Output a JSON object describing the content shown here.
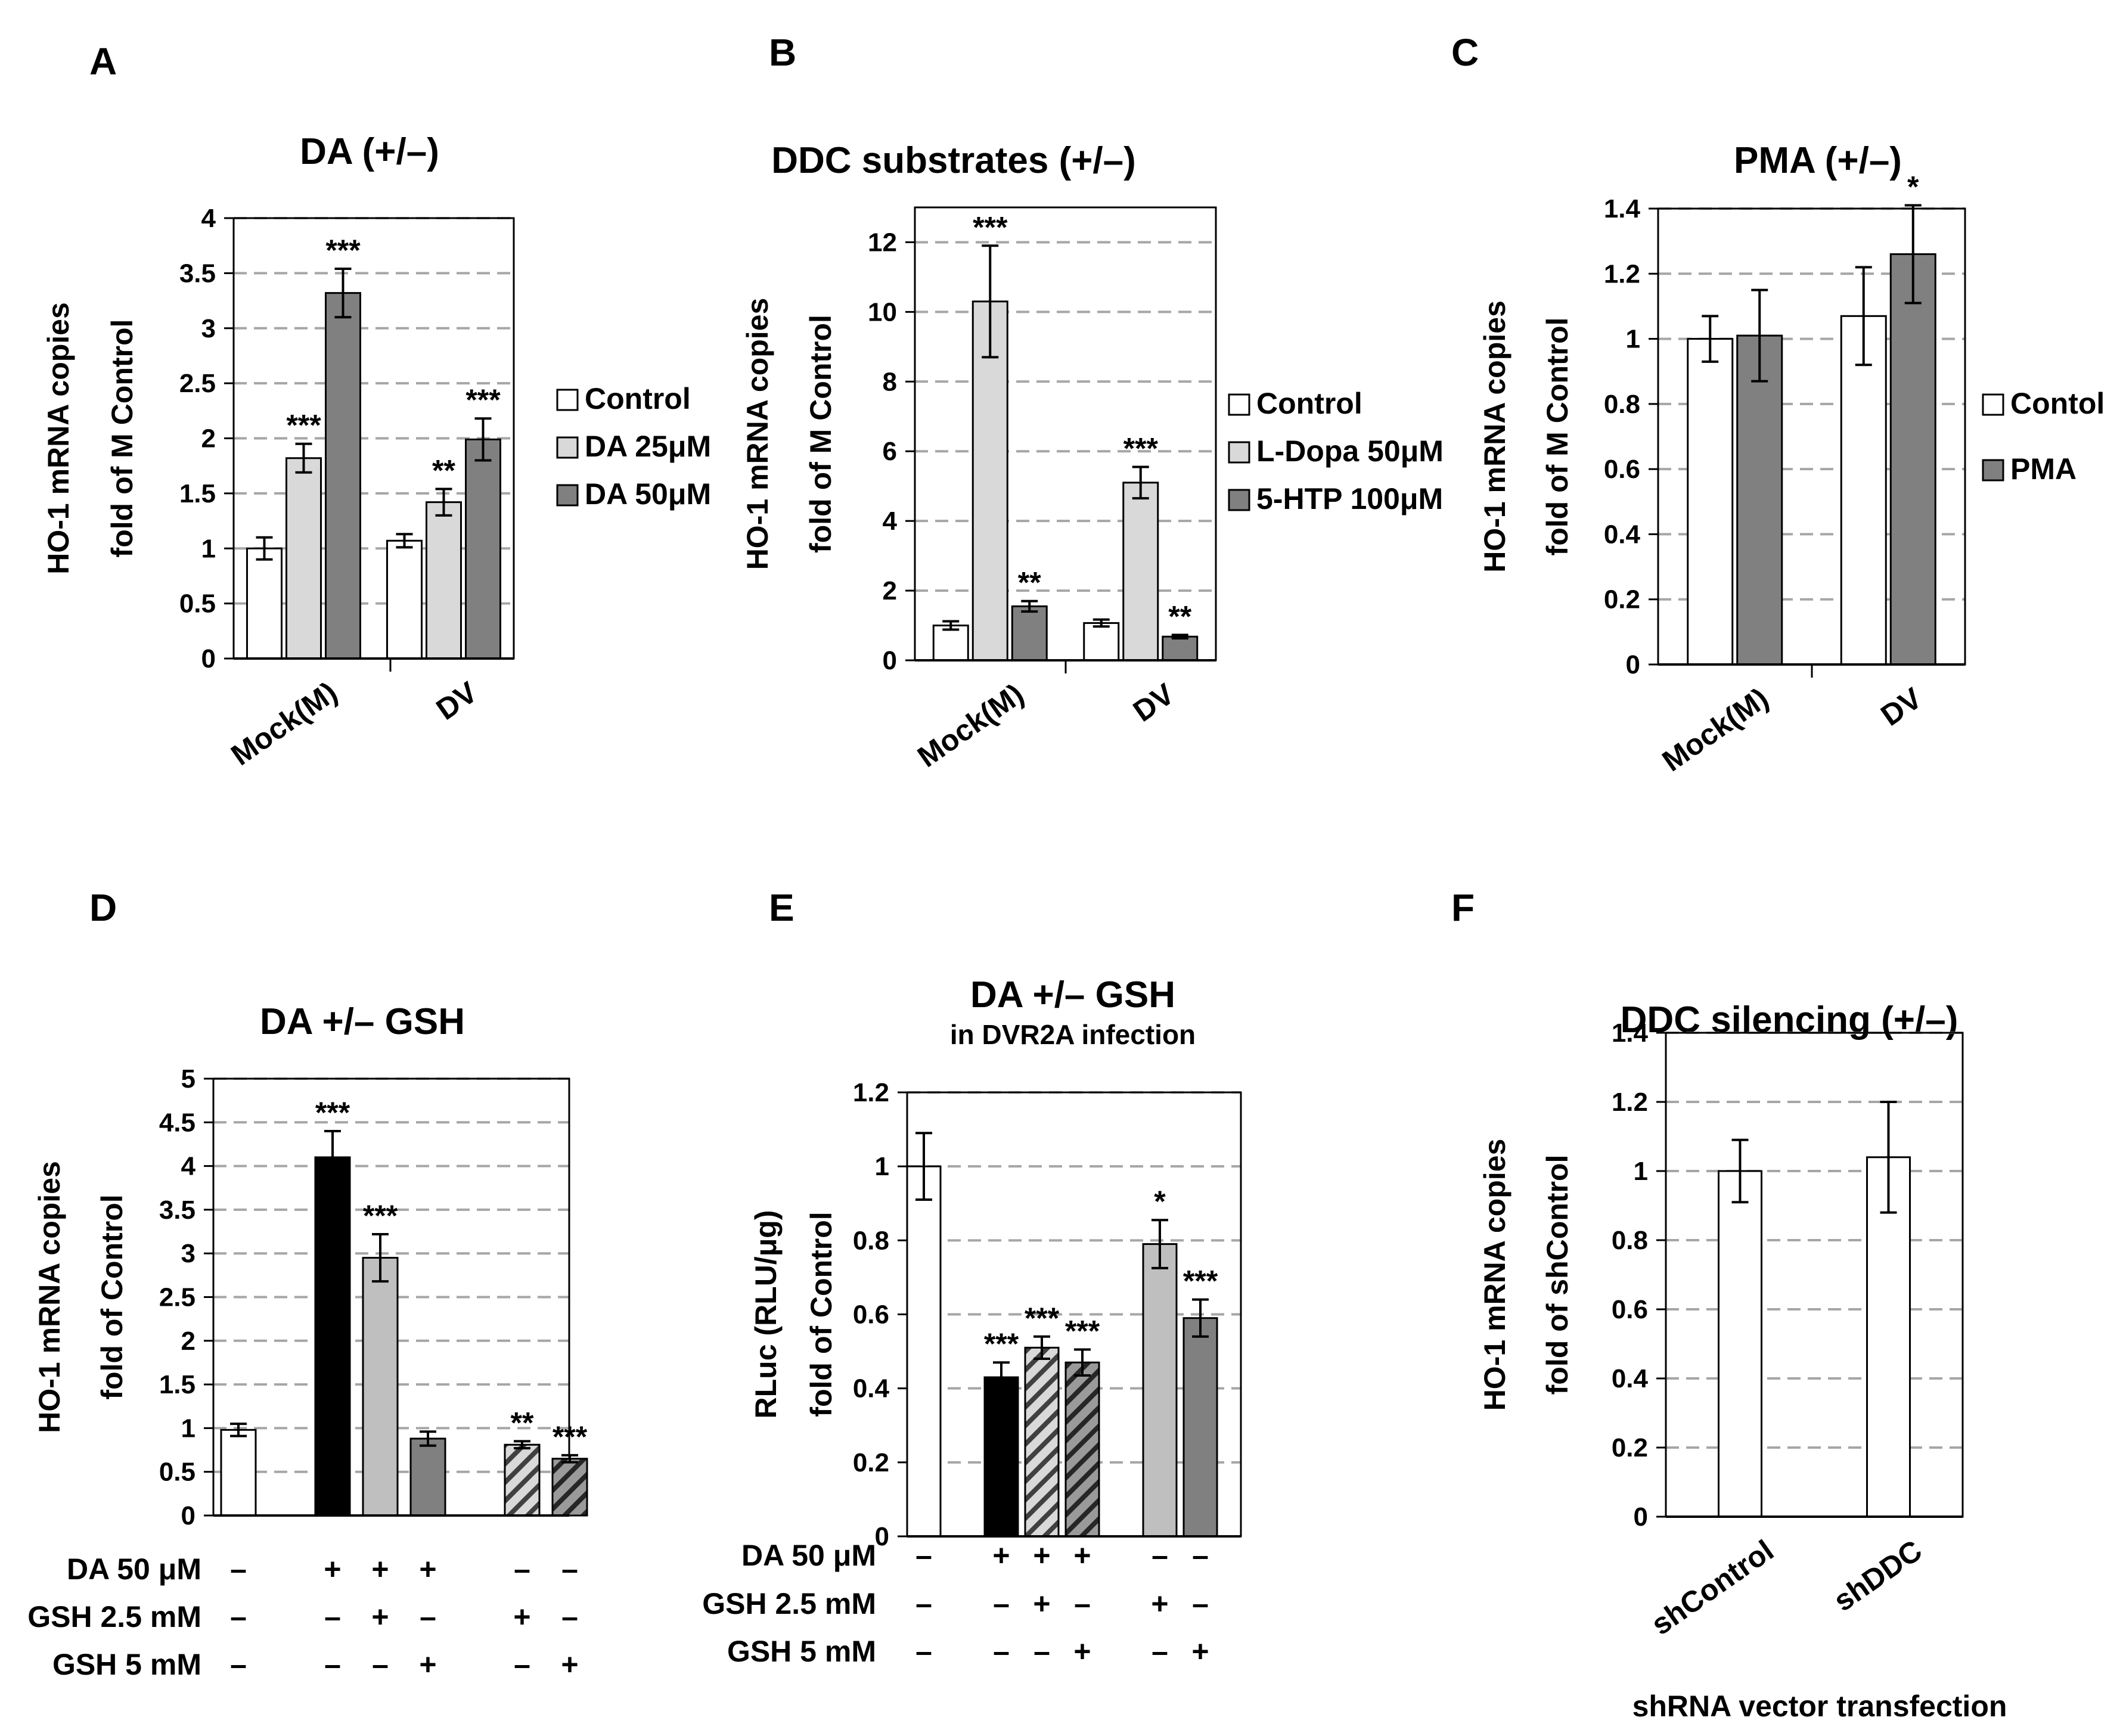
{
  "chart_data": [
    {
      "panel": "A",
      "type": "bar",
      "title": "DA (+/–)",
      "ylabel": [
        "HO-1 mRNA copies",
        "fold of M Control"
      ],
      "ylim": [
        0,
        4
      ],
      "yticks": [
        0,
        0.5,
        1,
        1.5,
        2,
        2.5,
        3,
        3.5,
        4
      ],
      "grid": true,
      "categories": [
        "Mock(M)",
        "DV"
      ],
      "legend_position": "right",
      "series": [
        {
          "name": "Control",
          "color": "#ffffff",
          "pattern": "none",
          "values": [
            1.0,
            1.07
          ],
          "errors": [
            0.1,
            0.06
          ],
          "stars": [
            "",
            ""
          ]
        },
        {
          "name": "DA 25μM",
          "color": "#d9d9d9",
          "pattern": "none",
          "values": [
            1.82,
            1.42
          ],
          "errors": [
            0.13,
            0.12
          ],
          "stars": [
            "***",
            "**"
          ]
        },
        {
          "name": "DA 50μM",
          "color": "#808080",
          "pattern": "none",
          "values": [
            3.32,
            1.99
          ],
          "errors": [
            0.22,
            0.19
          ],
          "stars": [
            "***",
            "***"
          ]
        }
      ]
    },
    {
      "panel": "B",
      "type": "bar",
      "title": "DDC substrates (+/–)",
      "ylabel": [
        "HO-1 mRNA copies",
        "fold of M Control"
      ],
      "ylim": [
        0,
        13
      ],
      "yticks": [
        0,
        2,
        4,
        6,
        8,
        10,
        12
      ],
      "grid": true,
      "categories": [
        "Mock(M)",
        "DV"
      ],
      "legend_position": "right",
      "series": [
        {
          "name": "Control",
          "color": "#ffffff",
          "pattern": "none",
          "values": [
            1.0,
            1.07
          ],
          "errors": [
            0.12,
            0.1
          ],
          "stars": [
            "",
            ""
          ]
        },
        {
          "name": "L-Dopa 50μM",
          "color": "#d9d9d9",
          "pattern": "none",
          "values": [
            10.3,
            5.1
          ],
          "errors": [
            1.6,
            0.45
          ],
          "stars": [
            "***",
            "***"
          ]
        },
        {
          "name": "5-HTP 100μM",
          "color": "#808080",
          "pattern": "none",
          "values": [
            1.55,
            0.68
          ],
          "errors": [
            0.15,
            0.05
          ],
          "stars": [
            "**",
            "**"
          ]
        }
      ]
    },
    {
      "panel": "C",
      "type": "bar",
      "title": "PMA (+/–)",
      "ylabel": [
        "HO-1 mRNA copies",
        "fold of M Control"
      ],
      "ylim": [
        0,
        1.4
      ],
      "yticks": [
        0,
        0.2,
        0.4,
        0.6,
        0.8,
        1,
        1.2,
        1.4
      ],
      "grid": true,
      "categories": [
        "Mock(M)",
        "DV"
      ],
      "legend_position": "right",
      "series": [
        {
          "name": "Contol",
          "color": "#ffffff",
          "pattern": "none",
          "values": [
            1.0,
            1.07
          ],
          "errors": [
            0.07,
            0.15
          ],
          "stars": [
            "",
            ""
          ]
        },
        {
          "name": "PMA",
          "color": "#808080",
          "pattern": "none",
          "values": [
            1.01,
            1.26
          ],
          "errors": [
            0.14,
            0.15
          ],
          "stars": [
            "",
            "*"
          ]
        }
      ]
    },
    {
      "panel": "D",
      "type": "bar",
      "title": "DA +/– GSH",
      "ylabel": [
        "HO-1 mRNA copies",
        "fold of Control"
      ],
      "ylim": [
        0,
        5
      ],
      "yticks": [
        0,
        0.5,
        1,
        1.5,
        2,
        2.5,
        3,
        3.5,
        4,
        4.5,
        5
      ],
      "grid": true,
      "bars": [
        {
          "value": 0.98,
          "error": 0.07,
          "color": "#ffffff",
          "pattern": "none",
          "stars": ""
        },
        {
          "value": 4.1,
          "error": 0.3,
          "color": "#000000",
          "pattern": "none",
          "stars": "***"
        },
        {
          "value": 2.95,
          "error": 0.27,
          "color": "#bfbfbf",
          "pattern": "none",
          "stars": "***"
        },
        {
          "value": 0.88,
          "error": 0.08,
          "color": "#808080",
          "pattern": "none",
          "stars": ""
        },
        {
          "value": 0.81,
          "error": 0.04,
          "color": "#d9d9d9",
          "pattern": "hatch",
          "stars": "**"
        },
        {
          "value": 0.65,
          "error": 0.04,
          "color": "#808080",
          "pattern": "hatch",
          "stars": "***"
        }
      ],
      "conditions": [
        {
          "label": "DA  50 μM",
          "marks": [
            "–",
            "+",
            "+",
            "+",
            "–",
            "–"
          ]
        },
        {
          "label": "GSH 2.5 mM",
          "marks": [
            "–",
            "–",
            "+",
            "–",
            "+",
            "–"
          ]
        },
        {
          "label": "GSH 5 mM",
          "marks": [
            "–",
            "–",
            "–",
            "+",
            "–",
            "+"
          ]
        }
      ]
    },
    {
      "panel": "E",
      "type": "bar",
      "title": "DA +/– GSH",
      "subtitle": "in DVR2A infection",
      "ylabel": [
        "RLuc (RLU/μg)",
        "fold of Control"
      ],
      "ylim": [
        0,
        1.2
      ],
      "yticks": [
        0,
        0.2,
        0.4,
        0.6,
        0.8,
        1,
        1.2
      ],
      "grid": true,
      "bars": [
        {
          "value": 1.0,
          "error": 0.09,
          "color": "#ffffff",
          "pattern": "none",
          "stars": ""
        },
        {
          "value": 0.43,
          "error": 0.04,
          "color": "#000000",
          "pattern": "none",
          "stars": "***"
        },
        {
          "value": 0.51,
          "error": 0.03,
          "color": "#d9d9d9",
          "pattern": "hatch",
          "stars": "***"
        },
        {
          "value": 0.47,
          "error": 0.035,
          "color": "#808080",
          "pattern": "hatch",
          "stars": "***"
        },
        {
          "value": 0.79,
          "error": 0.065,
          "color": "#bfbfbf",
          "pattern": "none",
          "stars": "*"
        },
        {
          "value": 0.59,
          "error": 0.05,
          "color": "#808080",
          "pattern": "none",
          "stars": "***"
        }
      ],
      "conditions": [
        {
          "label": "DA  50 μM",
          "marks": [
            "–",
            "+",
            "+",
            "+",
            "–",
            "–"
          ]
        },
        {
          "label": "GSH 2.5 mM",
          "marks": [
            "–",
            "–",
            "+",
            "–",
            "+",
            "–"
          ]
        },
        {
          "label": "GSH 5 mM",
          "marks": [
            "–",
            "–",
            "–",
            "+",
            "–",
            "+"
          ]
        }
      ]
    },
    {
      "panel": "F",
      "type": "bar",
      "title": "DDC silencing (+/–)",
      "ylabel": [
        "HO-1 mRNA copies",
        "fold of shControl"
      ],
      "xlabel": "shRNA vector transfection",
      "ylim": [
        0,
        1.4
      ],
      "yticks": [
        0,
        0.2,
        0.4,
        0.6,
        0.8,
        1,
        1.2,
        1.4
      ],
      "grid": true,
      "categories": [
        "shControl",
        "shDDC"
      ],
      "bars": [
        {
          "value": 1.0,
          "error": 0.09,
          "color": "#ffffff",
          "pattern": "none",
          "stars": ""
        },
        {
          "value": 1.04,
          "error": 0.16,
          "color": "#ffffff",
          "pattern": "none",
          "stars": ""
        }
      ]
    }
  ]
}
